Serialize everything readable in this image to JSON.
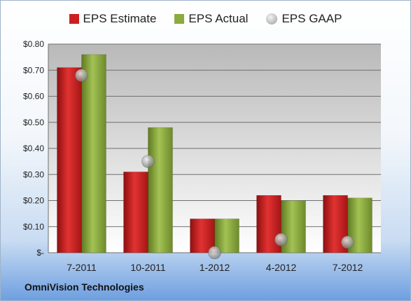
{
  "chart_data": {
    "type": "bar",
    "categories": [
      "7-2011",
      "10-2011",
      "1-2012",
      "4-2012",
      "7-2012"
    ],
    "series": [
      {
        "name": "EPS Estimate",
        "kind": "bar",
        "color": "#cc1f1f",
        "values": [
          0.71,
          0.31,
          0.13,
          0.22,
          0.22
        ]
      },
      {
        "name": "EPS Actual",
        "kind": "bar",
        "color": "#8bab3e",
        "values": [
          0.76,
          0.48,
          0.13,
          0.2,
          0.21
        ]
      },
      {
        "name": "EPS GAAP",
        "kind": "marker",
        "color": "#b9b9b9",
        "values": [
          0.68,
          0.35,
          0.0,
          0.05,
          0.04
        ]
      }
    ],
    "yticks": [
      "$-",
      "$0.10",
      "$0.20",
      "$0.30",
      "$0.40",
      "$0.50",
      "$0.60",
      "$0.70",
      "$0.80"
    ],
    "ylim": [
      0,
      0.8
    ],
    "grid": true,
    "legend": "top",
    "footer": "OmniVision Technologies"
  }
}
